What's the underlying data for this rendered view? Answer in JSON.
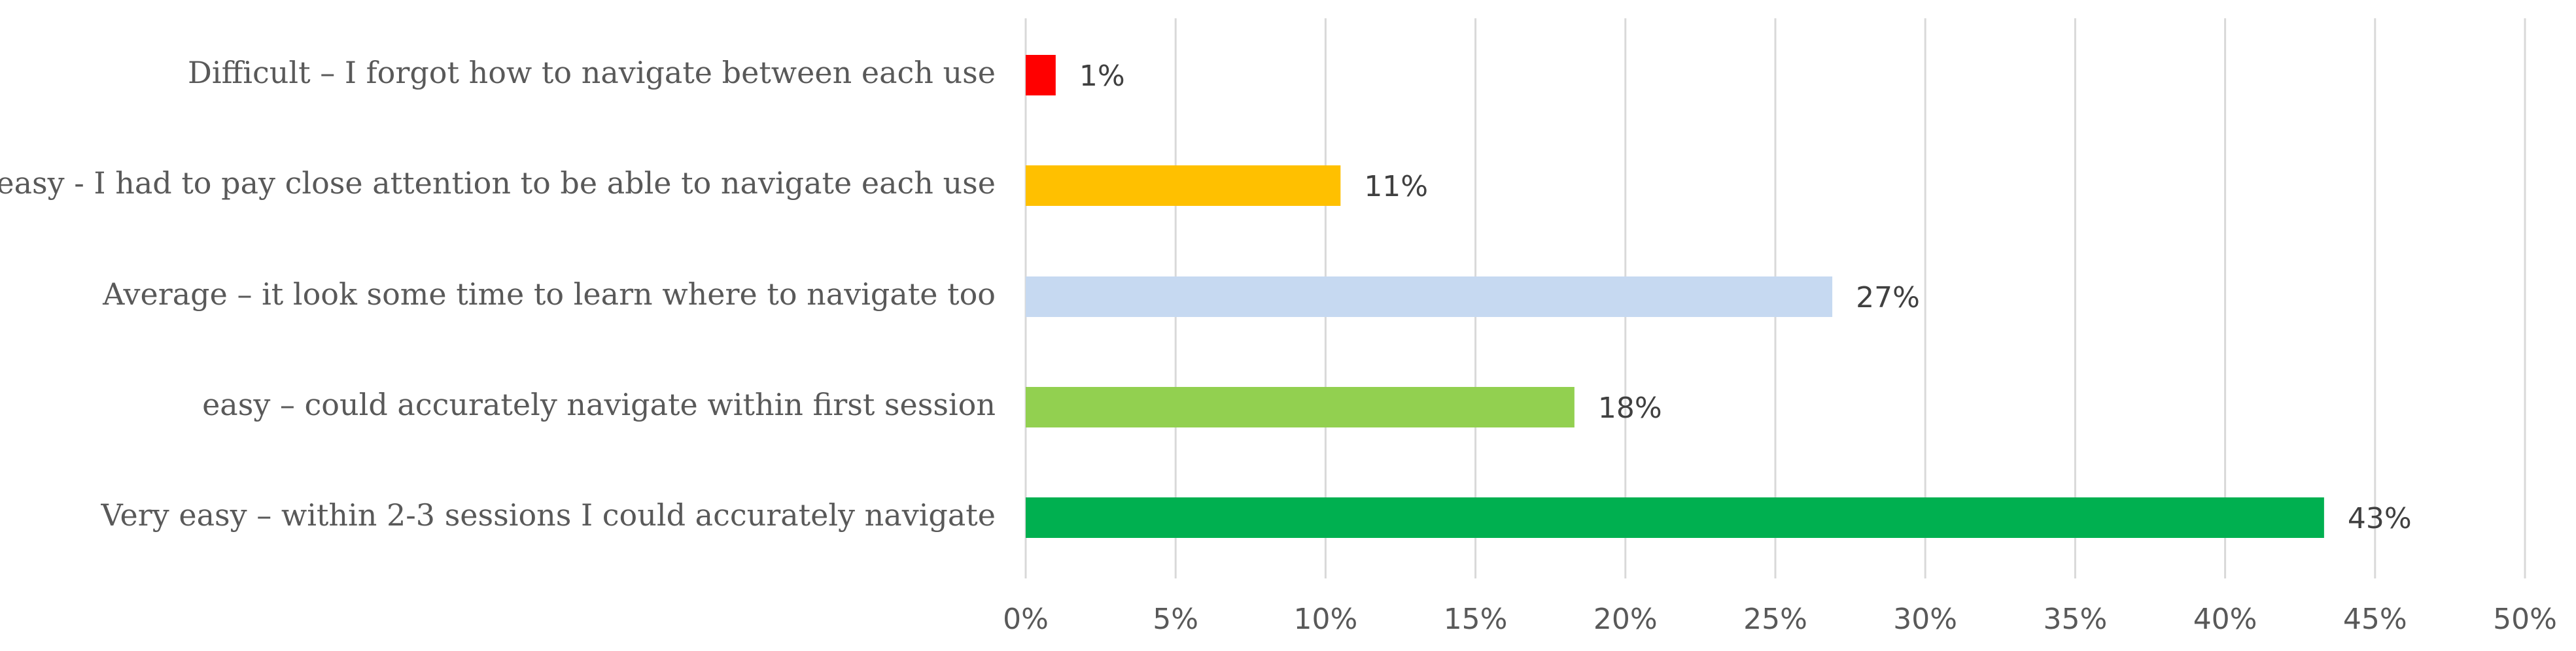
{
  "chart_data": {
    "type": "bar",
    "orientation": "horizontal",
    "categories": [
      "Difficult – I forgot how to navigate between each use",
      "Not easy - I had to pay close attention to be able to navigate each use",
      "Average – it look some time to learn where to navigate too",
      "easy – could accurately navigate within first session",
      "Very easy – within 2-3 sessions I could accurately navigate"
    ],
    "values": [
      1,
      10.5,
      26.9,
      18.3,
      43.3
    ],
    "data_labels": [
      "1%",
      "11%",
      "27%",
      "18%",
      "43%"
    ],
    "colors": [
      "#ff0000",
      "#ffc000",
      "#c6d9f1",
      "#92d050",
      "#00b050"
    ],
    "xlim": [
      0,
      50
    ],
    "ticks": [
      0,
      5,
      10,
      15,
      20,
      25,
      30,
      35,
      40,
      45,
      50
    ],
    "tick_labels": [
      "0%",
      "5%",
      "10%",
      "15%",
      "20%",
      "25%",
      "30%",
      "35%",
      "40%",
      "45%",
      "50%"
    ],
    "grid": true,
    "title": "",
    "xlabel": "",
    "ylabel": ""
  }
}
